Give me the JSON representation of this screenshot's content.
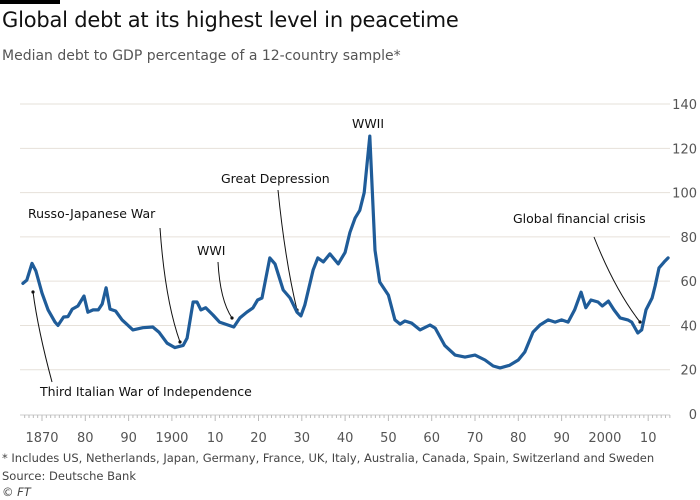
{
  "header": {
    "title": "Global debt at its highest level in peacetime",
    "subtitle": "Median debt to GDP percentage of a 12-country sample*"
  },
  "footer": {
    "note": "* Includes US, Netherlands, Japan, Germany, France, UK, Italy, Australia, Canada, Spain, Switzerland and Sweden",
    "source": "Source: Deutsche Bank",
    "credit": "© FT"
  },
  "colors": {
    "series": "#1f5c99",
    "grid": "#e6e1da"
  },
  "chart_data": {
    "type": "line",
    "title": "Global debt at its highest level in peacetime",
    "subtitle": "Median debt to GDP percentage of a 12-country sample*",
    "xlabel": "",
    "ylabel": "",
    "xlim": [
      1865,
      2016
    ],
    "ylim": [
      0,
      140
    ],
    "grid": true,
    "y_axis_side": "right",
    "yticks": [
      0,
      20,
      40,
      60,
      80,
      100,
      120,
      140
    ],
    "xticks": [
      {
        "year": 1870,
        "label": "1870"
      },
      {
        "year": 1880,
        "label": "80"
      },
      {
        "year": 1890,
        "label": "90"
      },
      {
        "year": 1900,
        "label": "1900"
      },
      {
        "year": 1910,
        "label": "10"
      },
      {
        "year": 1920,
        "label": "20"
      },
      {
        "year": 1930,
        "label": "30"
      },
      {
        "year": 1940,
        "label": "40"
      },
      {
        "year": 1950,
        "label": "50"
      },
      {
        "year": 1960,
        "label": "60"
      },
      {
        "year": 1970,
        "label": "70"
      },
      {
        "year": 1980,
        "label": "80"
      },
      {
        "year": 1990,
        "label": "90"
      },
      {
        "year": 2000,
        "label": "2000"
      },
      {
        "year": 2010,
        "label": "10"
      }
    ],
    "series": [
      {
        "name": "Median debt to GDP (%)",
        "x": [
          1865.6,
          1866.5,
          1867.7,
          1868.6,
          1870,
          1871.4,
          1873,
          1873.7,
          1875,
          1876,
          1877,
          1878.3,
          1879.7,
          1880.6,
          1881.8,
          1883,
          1883.9,
          1884.8,
          1885.7,
          1887,
          1888.5,
          1891,
          1893.3,
          1895.6,
          1897,
          1898.9,
          1900.7,
          1902.6,
          1903.5,
          1904.9,
          1905.8,
          1906.7,
          1907.8,
          1909.5,
          1911,
          1914.3,
          1915.7,
          1917.3,
          1918.7,
          1919.8,
          1920.8,
          1922.6,
          1923.8,
          1925.7,
          1927.3,
          1928.9,
          1929.8,
          1930.7,
          1932.6,
          1933.7,
          1935,
          1936.5,
          1938.4,
          1940,
          1941.1,
          1942.3,
          1943.4,
          1944.4,
          1945.7,
          1946.9,
          1948,
          1950,
          1951.5,
          1952.7,
          1953.8,
          1955.4,
          1957.3,
          1959.6,
          1960.8,
          1963,
          1965.4,
          1967.7,
          1970,
          1972.3,
          1974.2,
          1975.8,
          1978,
          1980,
          1981.5,
          1983.4,
          1985,
          1986.9,
          1988.5,
          1990,
          1991.5,
          1993,
          1994.5,
          1995.6,
          1996.8,
          1998.4,
          1999.4,
          2000.8,
          2002.1,
          2003.5,
          2005.3,
          2006.2,
          2007.6,
          2008.5,
          2009.5,
          2010.9,
          2011.6,
          2012.5,
          2013.7,
          2014.6
        ],
        "values": [
          59,
          60.5,
          68,
          64.6,
          54.6,
          47,
          41.5,
          40,
          43.8,
          44,
          47.4,
          48.8,
          53.3,
          46,
          47,
          47,
          49.7,
          57,
          47.4,
          46.5,
          42.5,
          38,
          39,
          39.3,
          37,
          32,
          30,
          31,
          34.3,
          50.6,
          50.6,
          47,
          48,
          44.7,
          41.5,
          39.3,
          43.4,
          46,
          47.9,
          51.5,
          52.4,
          70.5,
          67.8,
          56,
          52.4,
          46,
          44.3,
          49.2,
          65,
          70.5,
          68.7,
          72.3,
          67.8,
          73,
          82,
          88.5,
          92,
          100,
          125.5,
          74,
          59.6,
          53.7,
          42.5,
          40.6,
          42,
          41,
          38,
          40.2,
          38.8,
          31,
          26.6,
          25.7,
          26.6,
          24.4,
          21.7,
          20.8,
          22,
          24.4,
          28,
          37,
          40.2,
          42.5,
          41.5,
          42.5,
          41.5,
          47,
          55,
          48,
          51.5,
          50.6,
          48.8,
          51,
          47,
          43.4,
          42.5,
          41.5,
          36.6,
          38,
          47,
          52.4,
          57.8,
          66,
          68.7,
          70.5
        ]
      }
    ],
    "annotations": [
      {
        "label": "Third Italian War of Independence",
        "year": 1866,
        "value": 60
      },
      {
        "label": "Russo-Japanese War",
        "year": 1904,
        "value": 31
      },
      {
        "label": "WWI",
        "year": 1914,
        "value": 40
      },
      {
        "label": "Great Depression",
        "year": 1930,
        "value": 45
      },
      {
        "label": "WWII",
        "year": 1946,
        "value": 125.5
      },
      {
        "label": "Global financial crisis",
        "year": 2008,
        "value": 38
      }
    ]
  }
}
